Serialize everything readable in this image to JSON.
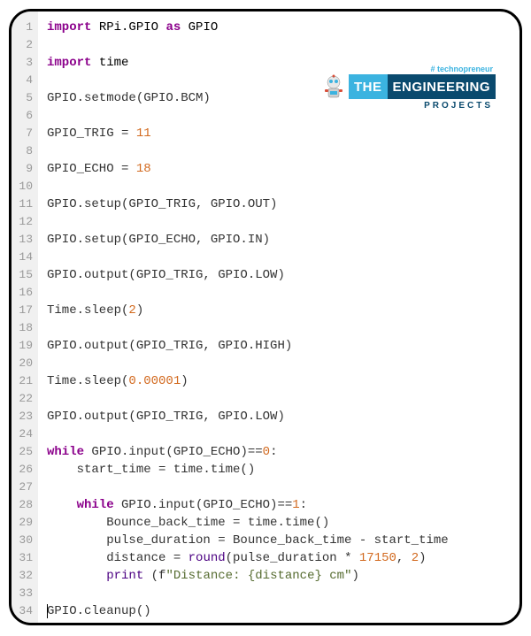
{
  "logo": {
    "tagline": "# technopreneur",
    "word1": "THE",
    "word2": "ENGINEERING",
    "subtitle": "PROJECTS"
  },
  "code": {
    "lines": [
      {
        "n": 1,
        "tokens": [
          {
            "t": "import ",
            "c": "kw"
          },
          {
            "t": "RPi.GPIO ",
            "c": "mod"
          },
          {
            "t": "as ",
            "c": "kw"
          },
          {
            "t": "GPIO",
            "c": "mod"
          }
        ]
      },
      {
        "n": 2,
        "tokens": []
      },
      {
        "n": 3,
        "tokens": [
          {
            "t": "import ",
            "c": "kw"
          },
          {
            "t": "time",
            "c": "mod"
          }
        ]
      },
      {
        "n": 4,
        "tokens": []
      },
      {
        "n": 5,
        "tokens": [
          {
            "t": "GPIO.setmode(GPIO.BCM)",
            "c": "pln"
          }
        ]
      },
      {
        "n": 6,
        "tokens": []
      },
      {
        "n": 7,
        "tokens": [
          {
            "t": "GPIO_TRIG = ",
            "c": "pln"
          },
          {
            "t": "11",
            "c": "num"
          }
        ]
      },
      {
        "n": 8,
        "tokens": []
      },
      {
        "n": 9,
        "tokens": [
          {
            "t": "GPIO_ECHO = ",
            "c": "pln"
          },
          {
            "t": "18",
            "c": "num"
          }
        ]
      },
      {
        "n": 10,
        "tokens": []
      },
      {
        "n": 11,
        "tokens": [
          {
            "t": "GPIO.setup(GPIO_TRIG, GPIO.OUT)",
            "c": "pln"
          }
        ]
      },
      {
        "n": 12,
        "tokens": []
      },
      {
        "n": 13,
        "tokens": [
          {
            "t": "GPIO.setup(GPIO_ECHO, GPIO.IN)",
            "c": "pln"
          }
        ]
      },
      {
        "n": 14,
        "tokens": []
      },
      {
        "n": 15,
        "tokens": [
          {
            "t": "GPIO.output(GPIO_TRIG, GPIO.LOW)",
            "c": "pln"
          }
        ]
      },
      {
        "n": 16,
        "tokens": []
      },
      {
        "n": 17,
        "tokens": [
          {
            "t": "Time.sleep(",
            "c": "pln"
          },
          {
            "t": "2",
            "c": "num"
          },
          {
            "t": ")",
            "c": "pln"
          }
        ]
      },
      {
        "n": 18,
        "tokens": []
      },
      {
        "n": 19,
        "tokens": [
          {
            "t": "GPIO.output(GPIO_TRIG, GPIO.HIGH)",
            "c": "pln"
          }
        ]
      },
      {
        "n": 20,
        "tokens": []
      },
      {
        "n": 21,
        "tokens": [
          {
            "t": "Time.sleep(",
            "c": "pln"
          },
          {
            "t": "0.00001",
            "c": "num"
          },
          {
            "t": ")",
            "c": "pln"
          }
        ]
      },
      {
        "n": 22,
        "tokens": []
      },
      {
        "n": 23,
        "tokens": [
          {
            "t": "GPIO.output(GPIO_TRIG, GPIO.LOW)",
            "c": "pln"
          }
        ]
      },
      {
        "n": 24,
        "tokens": []
      },
      {
        "n": 25,
        "tokens": [
          {
            "t": "while ",
            "c": "kw"
          },
          {
            "t": "GPIO.input(GPIO_ECHO)==",
            "c": "pln"
          },
          {
            "t": "0",
            "c": "num"
          },
          {
            "t": ":",
            "c": "pln"
          }
        ]
      },
      {
        "n": 26,
        "tokens": [
          {
            "t": "    start_time = time.time()",
            "c": "pln"
          }
        ]
      },
      {
        "n": 27,
        "tokens": []
      },
      {
        "n": 28,
        "tokens": [
          {
            "t": "    ",
            "c": "pln"
          },
          {
            "t": "while ",
            "c": "kw"
          },
          {
            "t": "GPIO.input(GPIO_ECHO)==",
            "c": "pln"
          },
          {
            "t": "1",
            "c": "num"
          },
          {
            "t": ":",
            "c": "pln"
          }
        ]
      },
      {
        "n": 29,
        "tokens": [
          {
            "t": "        Bounce_back_time = time.time()",
            "c": "pln"
          }
        ]
      },
      {
        "n": 30,
        "tokens": [
          {
            "t": "        pulse_duration = Bounce_back_time - start_time",
            "c": "pln"
          }
        ]
      },
      {
        "n": 31,
        "tokens": [
          {
            "t": "        distance = ",
            "c": "pln"
          },
          {
            "t": "round",
            "c": "func"
          },
          {
            "t": "(pulse_duration * ",
            "c": "pln"
          },
          {
            "t": "17150",
            "c": "num"
          },
          {
            "t": ", ",
            "c": "pln"
          },
          {
            "t": "2",
            "c": "num"
          },
          {
            "t": ")",
            "c": "pln"
          }
        ]
      },
      {
        "n": 32,
        "tokens": [
          {
            "t": "        ",
            "c": "pln"
          },
          {
            "t": "print",
            "c": "func"
          },
          {
            "t": " (f",
            "c": "pln"
          },
          {
            "t": "\"Distance: {distance} cm\"",
            "c": "str"
          },
          {
            "t": ")",
            "c": "pln"
          }
        ]
      },
      {
        "n": 33,
        "tokens": []
      },
      {
        "n": 34,
        "tokens": [
          {
            "t": "GPIO.cleanup()",
            "c": "pln"
          }
        ],
        "cursor": true
      }
    ]
  }
}
